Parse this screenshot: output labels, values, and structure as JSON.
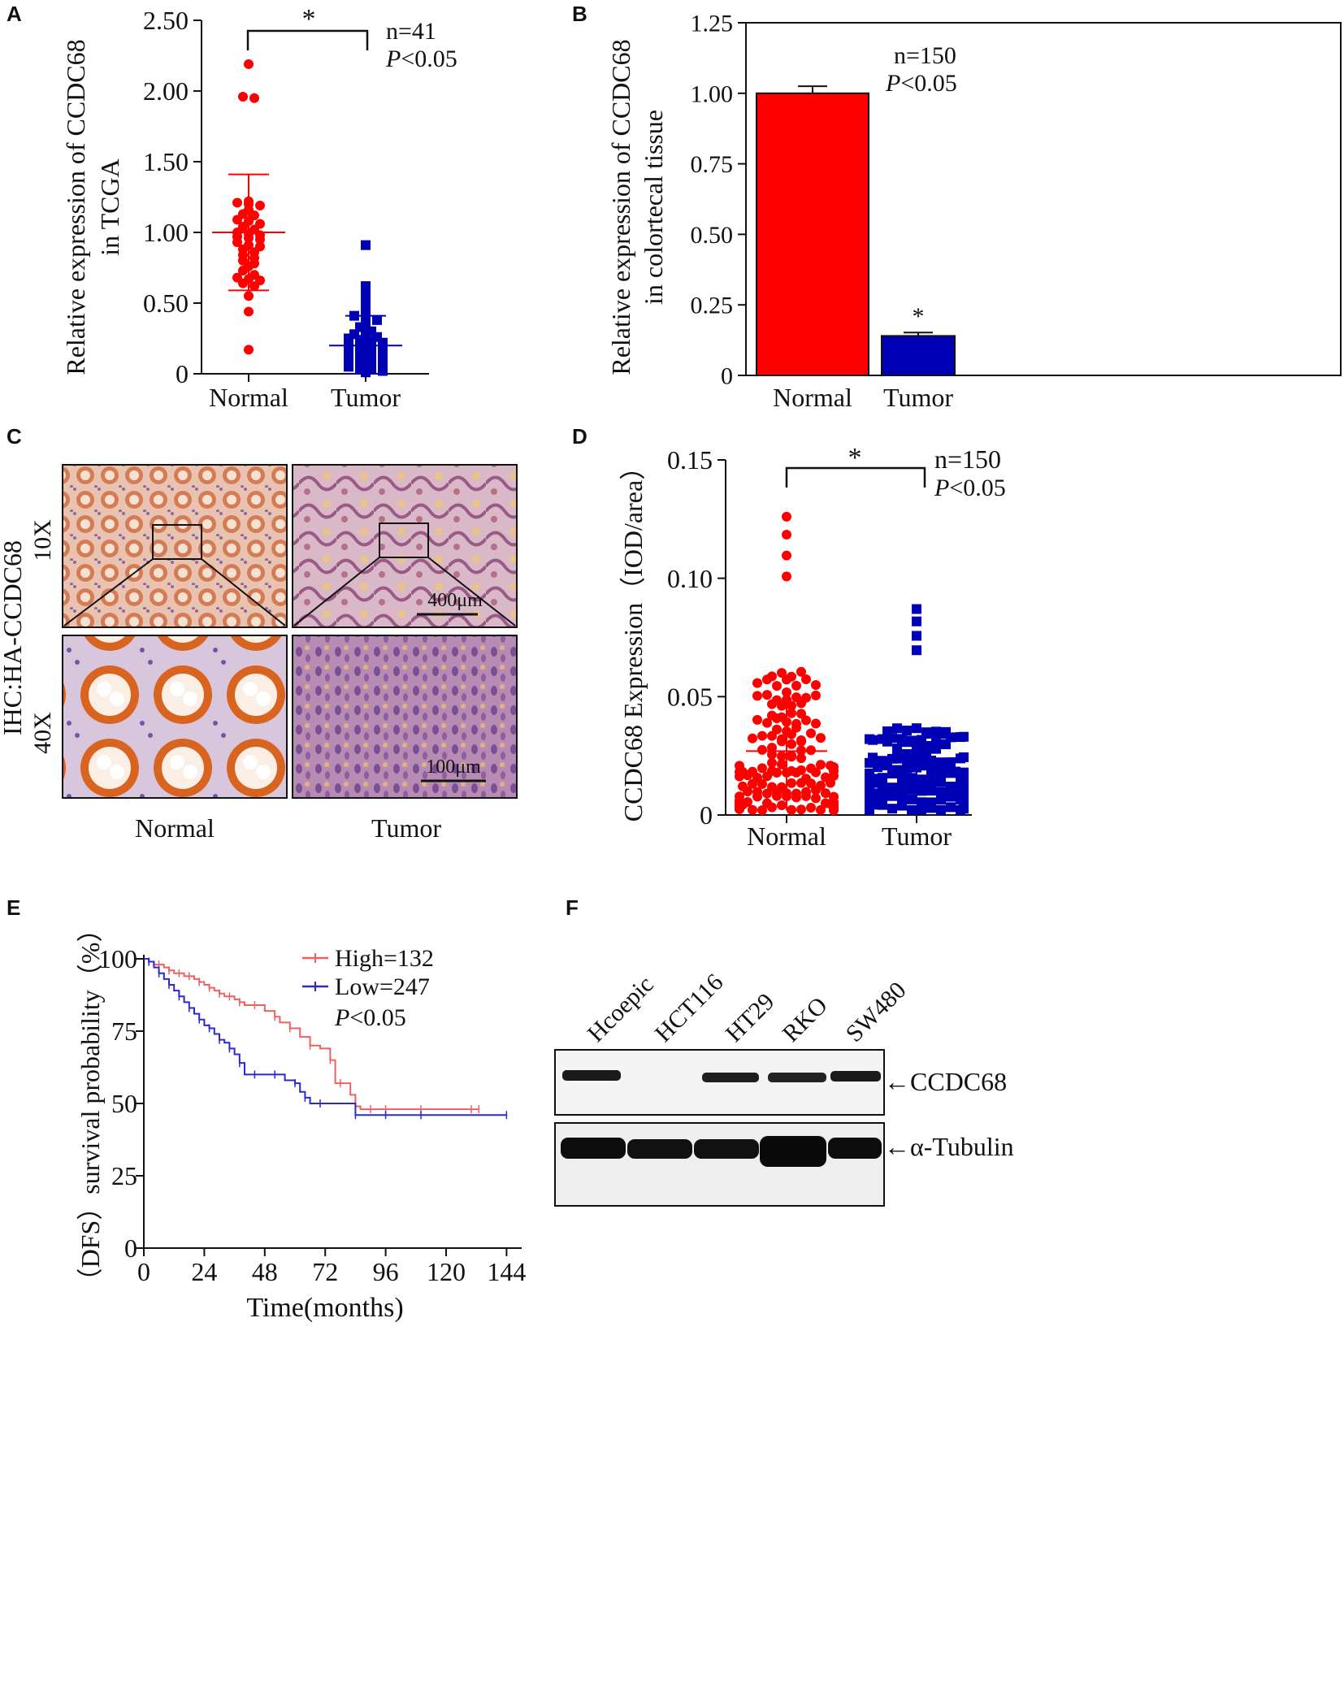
{
  "colors": {
    "normal": "#ff0000",
    "tumor": "#0000b4",
    "km_high": "#f06060",
    "km_low": "#2a2ad0",
    "axis": "#111111"
  },
  "panels": {
    "a": {
      "label": "A",
      "sig": "*",
      "n": "n=41",
      "p_sym": "P",
      "p_rest": "<0.05"
    },
    "b": {
      "label": "B",
      "sig": "*",
      "n": "n=150",
      "p_sym": "P",
      "p_rest": "<0.05"
    },
    "c": {
      "label": "C",
      "ylabel_top": "IHC:HA-CCDC68",
      "row_10x": "10X",
      "row_40x": "40X",
      "scale_10x": "400μm",
      "scale_40x": "100μm",
      "col_normal": "Normal",
      "col_tumor": "Tumor"
    },
    "d": {
      "label": "D",
      "sig": "*",
      "n": "n=150",
      "p_sym": "P",
      "p_rest": "<0.05"
    },
    "e": {
      "label": "E",
      "p_sym": "P",
      "p_rest": "<0.05"
    },
    "f": {
      "label": "F",
      "lanes": [
        "Hcoepic",
        "HCT116",
        "HT29",
        "RKO",
        "SW480"
      ],
      "band1": "←CCDC68",
      "band2": "←α-Tubulin"
    }
  },
  "chart_data": [
    {
      "id": "A",
      "type": "scatter",
      "ylabel": [
        "Relative expression of  CCDC68",
        "in TCGA"
      ],
      "categories": [
        "Normal",
        "Tumor"
      ],
      "yticks": [
        "0",
        "0.50",
        "1.00",
        "1.50",
        "2.00",
        "2.50"
      ],
      "ytick_values": [
        0,
        0.5,
        1.0,
        1.5,
        2.0,
        2.5
      ],
      "ylim": [
        0,
        2.5
      ],
      "series": [
        {
          "name": "Normal",
          "mean": 1.0,
          "sd": 0.41,
          "values": [
            2.19,
            1.96,
            1.95,
            1.22,
            1.21,
            1.2,
            1.19,
            1.16,
            1.13,
            1.12,
            1.09,
            1.08,
            1.06,
            1.04,
            1.02,
            1.0,
            0.99,
            0.98,
            0.97,
            0.96,
            0.95,
            0.93,
            0.91,
            0.9,
            0.88,
            0.86,
            0.84,
            0.82,
            0.8,
            0.78,
            0.76,
            0.73,
            0.7,
            0.68,
            0.67,
            0.66,
            0.64,
            0.62,
            0.55,
            0.44,
            0.17
          ]
        },
        {
          "name": "Tumor",
          "mean": 0.2,
          "sd": 0.21,
          "values": [
            0.91,
            0.62,
            0.61,
            0.57,
            0.53,
            0.48,
            0.45,
            0.41,
            0.4,
            0.38,
            0.36,
            0.33,
            0.3,
            0.28,
            0.27,
            0.26,
            0.25,
            0.24,
            0.23,
            0.22,
            0.21,
            0.2,
            0.19,
            0.18,
            0.17,
            0.16,
            0.15,
            0.14,
            0.13,
            0.12,
            0.11,
            0.1,
            0.09,
            0.08,
            0.07,
            0.06,
            0.05,
            0.04,
            0.03,
            0.02,
            0.01
          ]
        }
      ],
      "annotations": [
        "*",
        "n=41",
        "P<0.05"
      ]
    },
    {
      "id": "B",
      "type": "bar",
      "ylabel": [
        "Relative expression of  CCDC68",
        "in colortecal tissue"
      ],
      "categories": [
        "Normal",
        "Tumor"
      ],
      "values": [
        1.0,
        0.14
      ],
      "errors": [
        0.025,
        0.012
      ],
      "yticks": [
        "0",
        "0.25",
        "0.50",
        "0.75",
        "1.00",
        "1.25"
      ],
      "ytick_values": [
        0,
        0.25,
        0.5,
        0.75,
        1.0,
        1.25
      ],
      "ylim": [
        0,
        1.25
      ],
      "annotations": [
        "*",
        "n=150",
        "P<0.05"
      ]
    },
    {
      "id": "D",
      "type": "scatter",
      "ylabel": [
        "CCDC68 Expression（IOD/area）"
      ],
      "categories": [
        "Normal",
        "Tumor"
      ],
      "yticks": [
        "0",
        "0.05",
        "0.10",
        "0.15"
      ],
      "ytick_values": [
        0,
        0.05,
        0.1,
        0.15
      ],
      "ylim": [
        0,
        0.15
      ],
      "series": [
        {
          "name": "Normal",
          "n": 150,
          "mean": 0.027,
          "sd": 0.025,
          "max": 0.126
        },
        {
          "name": "Tumor",
          "n": 150,
          "mean": 0.016,
          "sd": 0.01,
          "max": 0.087
        }
      ],
      "annotations": [
        "*",
        "n=150",
        "P<0.05"
      ]
    },
    {
      "id": "E",
      "type": "line",
      "title": "",
      "xlabel": "Time(months)",
      "ylabel": "（DFS）survival probability（%）",
      "xticks": [
        "0",
        "24",
        "48",
        "72",
        "96",
        "120",
        "144"
      ],
      "xtick_values": [
        0,
        24,
        48,
        72,
        96,
        120,
        144
      ],
      "yticks": [
        "0",
        "25",
        "50",
        "75",
        "100"
      ],
      "ytick_values": [
        0,
        25,
        50,
        75,
        100
      ],
      "xlim": [
        0,
        150
      ],
      "ylim": [
        0,
        100
      ],
      "series": [
        {
          "name": "High=132",
          "x": [
            0,
            2,
            4,
            6,
            8,
            10,
            12,
            14,
            16,
            18,
            20,
            22,
            24,
            26,
            28,
            30,
            32,
            34,
            36,
            38,
            40,
            44,
            48,
            52,
            54,
            58,
            62,
            66,
            70,
            74,
            76,
            78,
            82,
            84,
            86,
            90,
            96,
            110,
            130,
            133
          ],
          "y": [
            100,
            99,
            98,
            98,
            97,
            96,
            95,
            95,
            94,
            94,
            93,
            92,
            91,
            90,
            89,
            88,
            87,
            87,
            86,
            85,
            84,
            84,
            82,
            80,
            78,
            76,
            73,
            70,
            69,
            65,
            57,
            57,
            53,
            49,
            48,
            48,
            48,
            48,
            48,
            48
          ]
        },
        {
          "name": "Low=247",
          "x": [
            0,
            2,
            4,
            6,
            8,
            10,
            12,
            14,
            16,
            18,
            20,
            22,
            24,
            26,
            28,
            30,
            32,
            34,
            36,
            38,
            40,
            44,
            48,
            52,
            56,
            60,
            62,
            64,
            66,
            70,
            80,
            84,
            96,
            110,
            144
          ],
          "y": [
            100,
            99,
            97,
            95,
            93,
            91,
            89,
            87,
            85,
            83,
            81,
            79,
            77,
            76,
            74,
            72,
            71,
            69,
            67,
            64,
            60,
            60,
            60,
            60,
            58,
            57,
            54,
            52,
            50,
            50,
            50,
            46,
            46,
            46,
            46
          ]
        }
      ],
      "legend": [
        "High=132",
        "Low=247",
        "P<0.05"
      ]
    }
  ]
}
